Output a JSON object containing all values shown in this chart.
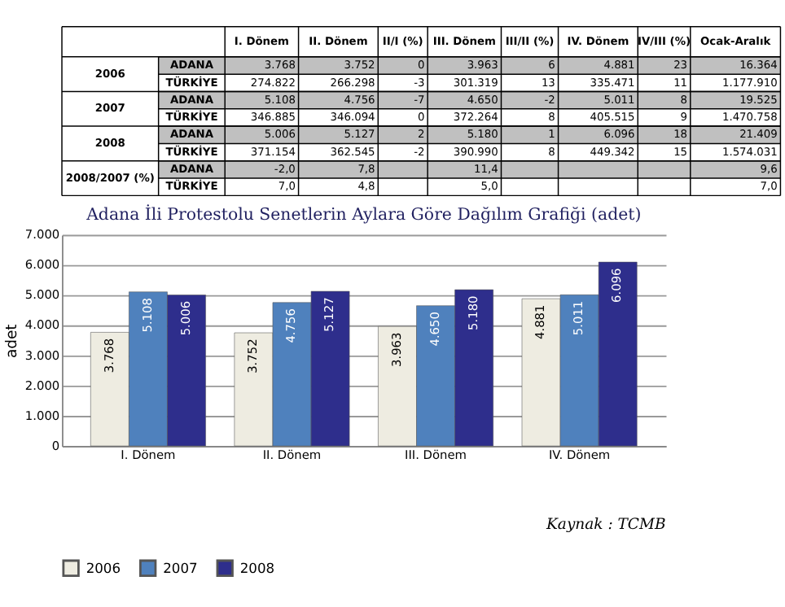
{
  "chart_data": [
    {
      "type": "other",
      "categories": [
        "I. Dönem",
        "II. Dönem",
        "II/I (%)",
        "III. Dönem",
        "III/II (%)",
        "IV. Dönem",
        "IV/III (%)",
        "Ocak-Aralık"
      ],
      "y_categories": [
        "2006",
        null,
        "2007",
        null,
        "2008",
        null,
        "2008/2007 (%)",
        null
      ],
      "y2_categories": [
        "ADANA",
        "TÜRKİYE",
        "ADANA",
        "TÜRKİYE",
        "ADANA",
        "TÜRKİYE",
        "ADANA",
        "TÜRKİYE"
      ],
      "cell_labels": [
        [
          "3.768",
          "3.752",
          "0",
          "3.963",
          "6",
          "4.881",
          "23",
          "16.364"
        ],
        [
          "274.822",
          "266.298",
          "-3",
          "301.319",
          "13",
          "335.471",
          "11",
          "1.177.910"
        ],
        [
          "5.108",
          "4.756",
          "-7",
          "4.650",
          "-2",
          "5.011",
          "8",
          "19.525"
        ],
        [
          "346.885",
          "346.094",
          "0",
          "372.264",
          "8",
          "405.515",
          "9",
          "1.470.758"
        ],
        [
          "5.006",
          "5.127",
          "2",
          "5.180",
          "1",
          "6.096",
          "18",
          "21.409"
        ],
        [
          "371.154",
          "362.545",
          "-2",
          "390.990",
          "8",
          "449.342",
          "15",
          "1.574.031"
        ],
        [
          "-2,0",
          "7,8",
          null,
          "11,4",
          null,
          null,
          null,
          "9,6"
        ],
        [
          "7,0",
          "4,8",
          null,
          "5,0",
          null,
          null,
          null,
          "7,0"
        ]
      ]
    },
    {
      "type": "bar",
      "title": "Adana İli Protestolu Senetlerin  Aylara Göre Dağılım Grafiği  (adet)",
      "ylabel": "adet",
      "categories": [
        "I. Dönem",
        "II. Dönem",
        "III. Dönem",
        "IV. Dönem"
      ],
      "series": [
        {
          "name": "2006",
          "color": "#eeece1",
          "values": [
            3768,
            3752,
            3963,
            4881
          ],
          "value_labels": [
            "3.768",
            "3.752",
            "3.963",
            "4.881"
          ]
        },
        {
          "name": "2007",
          "color": "#4f81bd",
          "values": [
            5108,
            4756,
            4650,
            5011
          ],
          "value_labels": [
            "5.108",
            "4.756",
            "4.650",
            "5.011"
          ]
        },
        {
          "name": "2008",
          "color": "#2e2e8c",
          "values": [
            5006,
            5127,
            5180,
            6096
          ],
          "value_labels": [
            "5.006",
            "5.127",
            "5.180",
            "6.096"
          ]
        }
      ],
      "ylim": [
        0,
        7000
      ],
      "yticks": [
        0,
        {
          "value": 1000,
          "label": "1.000"
        },
        {
          "value": 2000,
          "label": "2.000"
        },
        {
          "value": 3000,
          "label": "3.000"
        },
        {
          "value": 4000,
          "label": "4.000"
        },
        {
          "value": 5000,
          "label": "5.000"
        },
        {
          "value": 6000,
          "label": "6.000"
        },
        {
          "value": 7000,
          "label": "7.000"
        }
      ],
      "grid": "y",
      "legend": "bottom",
      "annotations": [
        "Kaynak : TCMB"
      ]
    }
  ]
}
